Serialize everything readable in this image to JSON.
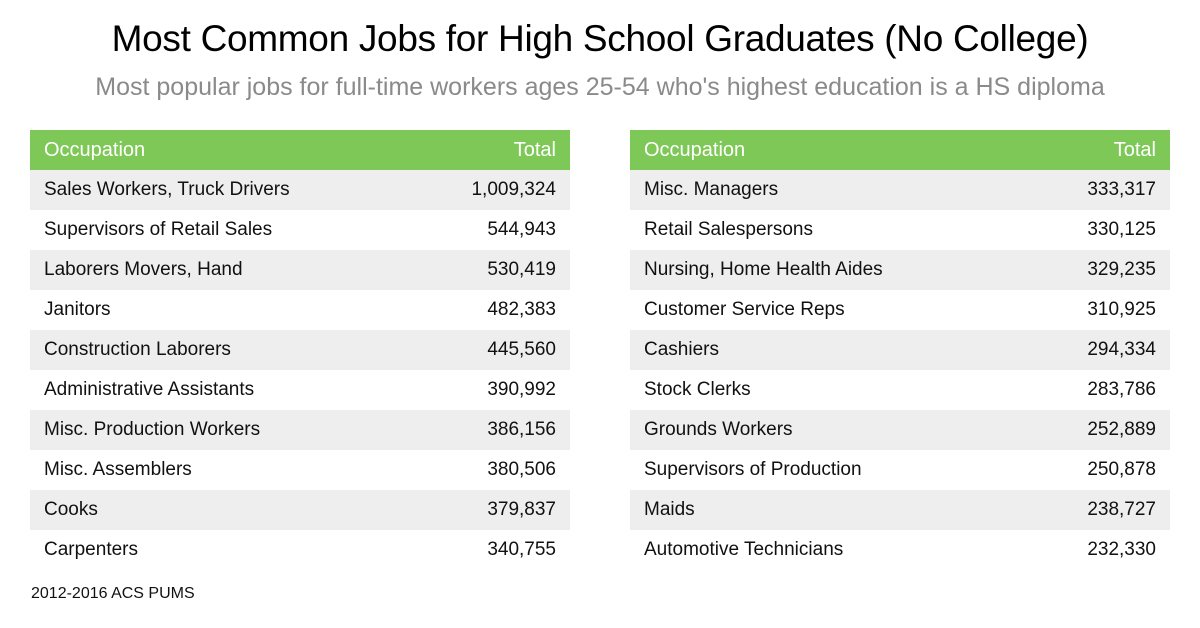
{
  "title": "Most Common Jobs for High School Graduates (No College)",
  "subtitle": "Most popular jobs for full-time workers ages 25-54 who's highest education is a HS diploma",
  "source": "2012-2016 ACS PUMS",
  "colors": {
    "header": "#7ec857",
    "stripe": "#eeeeee",
    "subtitle": "#8a8a8a"
  },
  "chart_data": [
    {
      "type": "table",
      "columns": [
        "Occupation",
        "Total"
      ],
      "rows": [
        [
          "Sales Workers, Truck Drivers",
          "1,009,324"
        ],
        [
          "Supervisors of Retail Sales",
          "544,943"
        ],
        [
          "Laborers Movers, Hand",
          "530,419"
        ],
        [
          "Janitors",
          "482,383"
        ],
        [
          "Construction Laborers",
          "445,560"
        ],
        [
          "Administrative Assistants",
          "390,992"
        ],
        [
          "Misc. Production Workers",
          "386,156"
        ],
        [
          "Misc. Assemblers",
          "380,506"
        ],
        [
          "Cooks",
          "379,837"
        ],
        [
          "Carpenters",
          "340,755"
        ]
      ]
    },
    {
      "type": "table",
      "columns": [
        "Occupation",
        "Total"
      ],
      "rows": [
        [
          "Misc. Managers",
          "333,317"
        ],
        [
          "Retail Salespersons",
          "330,125"
        ],
        [
          "Nursing, Home Health Aides",
          "329,235"
        ],
        [
          "Customer Service Reps",
          "310,925"
        ],
        [
          "Cashiers",
          "294,334"
        ],
        [
          "Stock Clerks",
          "283,786"
        ],
        [
          "Grounds Workers",
          "252,889"
        ],
        [
          "Supervisors of Production",
          "250,878"
        ],
        [
          "Maids",
          "238,727"
        ],
        [
          "Automotive Technicians",
          "232,330"
        ]
      ]
    }
  ]
}
